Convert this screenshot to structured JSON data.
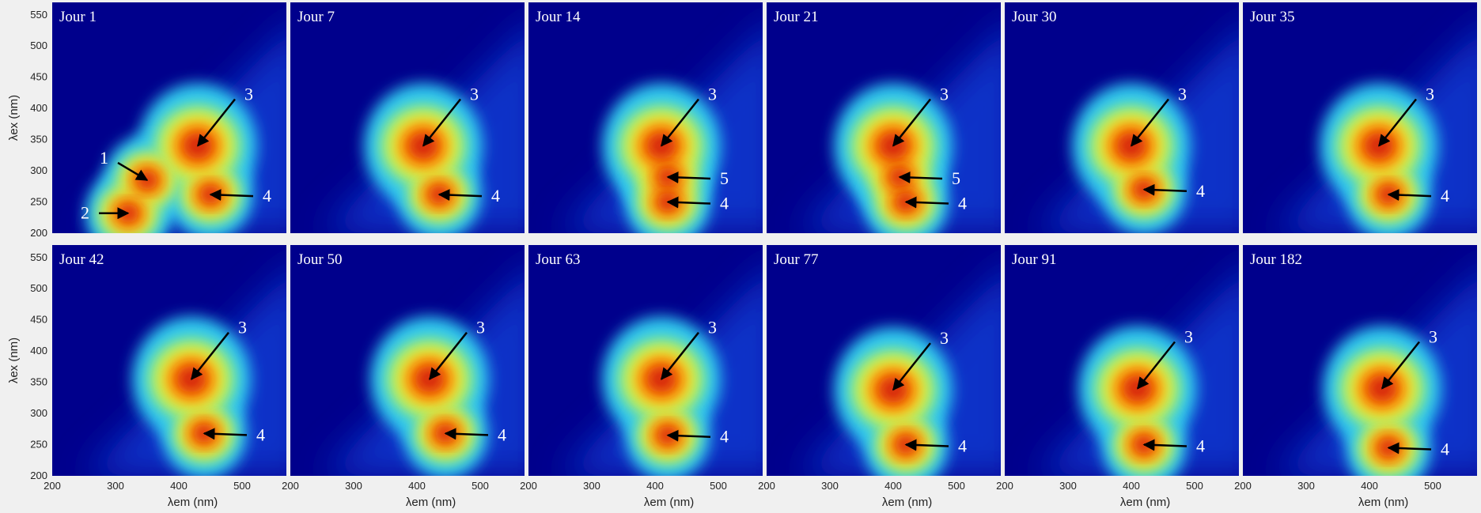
{
  "chart_data": {
    "type": "heatmap",
    "xlabel": "λem (nm)",
    "ylabel": "λex (nm)",
    "xlim": [
      200,
      570
    ],
    "ylim": [
      200,
      570
    ],
    "xticks": [
      200,
      300,
      400,
      500
    ],
    "yticks": [
      200,
      250,
      300,
      350,
      400,
      450,
      500,
      550
    ],
    "panels": [
      {
        "title": "Jour 1",
        "peaks": [
          {
            "label": "3",
            "x": 430,
            "y": 340
          },
          {
            "label": "1",
            "x": 350,
            "y": 285
          },
          {
            "label": "2",
            "x": 320,
            "y": 232
          },
          {
            "label": "4",
            "x": 450,
            "y": 262
          }
        ]
      },
      {
        "title": "Jour 7",
        "peaks": [
          {
            "label": "3",
            "x": 410,
            "y": 340
          },
          {
            "label": "4",
            "x": 435,
            "y": 262
          }
        ]
      },
      {
        "title": "Jour 14",
        "peaks": [
          {
            "label": "3",
            "x": 410,
            "y": 340
          },
          {
            "label": "5",
            "x": 420,
            "y": 290
          },
          {
            "label": "4",
            "x": 420,
            "y": 250
          }
        ]
      },
      {
        "title": "Jour 21",
        "peaks": [
          {
            "label": "3",
            "x": 400,
            "y": 340
          },
          {
            "label": "5",
            "x": 410,
            "y": 290
          },
          {
            "label": "4",
            "x": 420,
            "y": 250
          }
        ]
      },
      {
        "title": "Jour 30",
        "peaks": [
          {
            "label": "3",
            "x": 400,
            "y": 340
          },
          {
            "label": "4",
            "x": 420,
            "y": 270
          }
        ]
      },
      {
        "title": "Jour 35",
        "peaks": [
          {
            "label": "3",
            "x": 415,
            "y": 340
          },
          {
            "label": "4",
            "x": 430,
            "y": 262
          }
        ]
      },
      {
        "title": "Jour 42",
        "peaks": [
          {
            "label": "3",
            "x": 420,
            "y": 355
          },
          {
            "label": "4",
            "x": 440,
            "y": 268
          }
        ]
      },
      {
        "title": "Jour 50",
        "peaks": [
          {
            "label": "3",
            "x": 420,
            "y": 355
          },
          {
            "label": "4",
            "x": 445,
            "y": 268
          }
        ]
      },
      {
        "title": "Jour 63",
        "peaks": [
          {
            "label": "3",
            "x": 410,
            "y": 355
          },
          {
            "label": "4",
            "x": 420,
            "y": 265
          }
        ]
      },
      {
        "title": "Jour 77",
        "peaks": [
          {
            "label": "3",
            "x": 400,
            "y": 338
          },
          {
            "label": "4",
            "x": 420,
            "y": 250
          }
        ]
      },
      {
        "title": "Jour 91",
        "peaks": [
          {
            "label": "3",
            "x": 410,
            "y": 340
          },
          {
            "label": "4",
            "x": 420,
            "y": 250
          }
        ]
      },
      {
        "title": "Jour 182",
        "peaks": [
          {
            "label": "3",
            "x": 420,
            "y": 340
          },
          {
            "label": "4",
            "x": 430,
            "y": 245
          }
        ]
      }
    ]
  }
}
